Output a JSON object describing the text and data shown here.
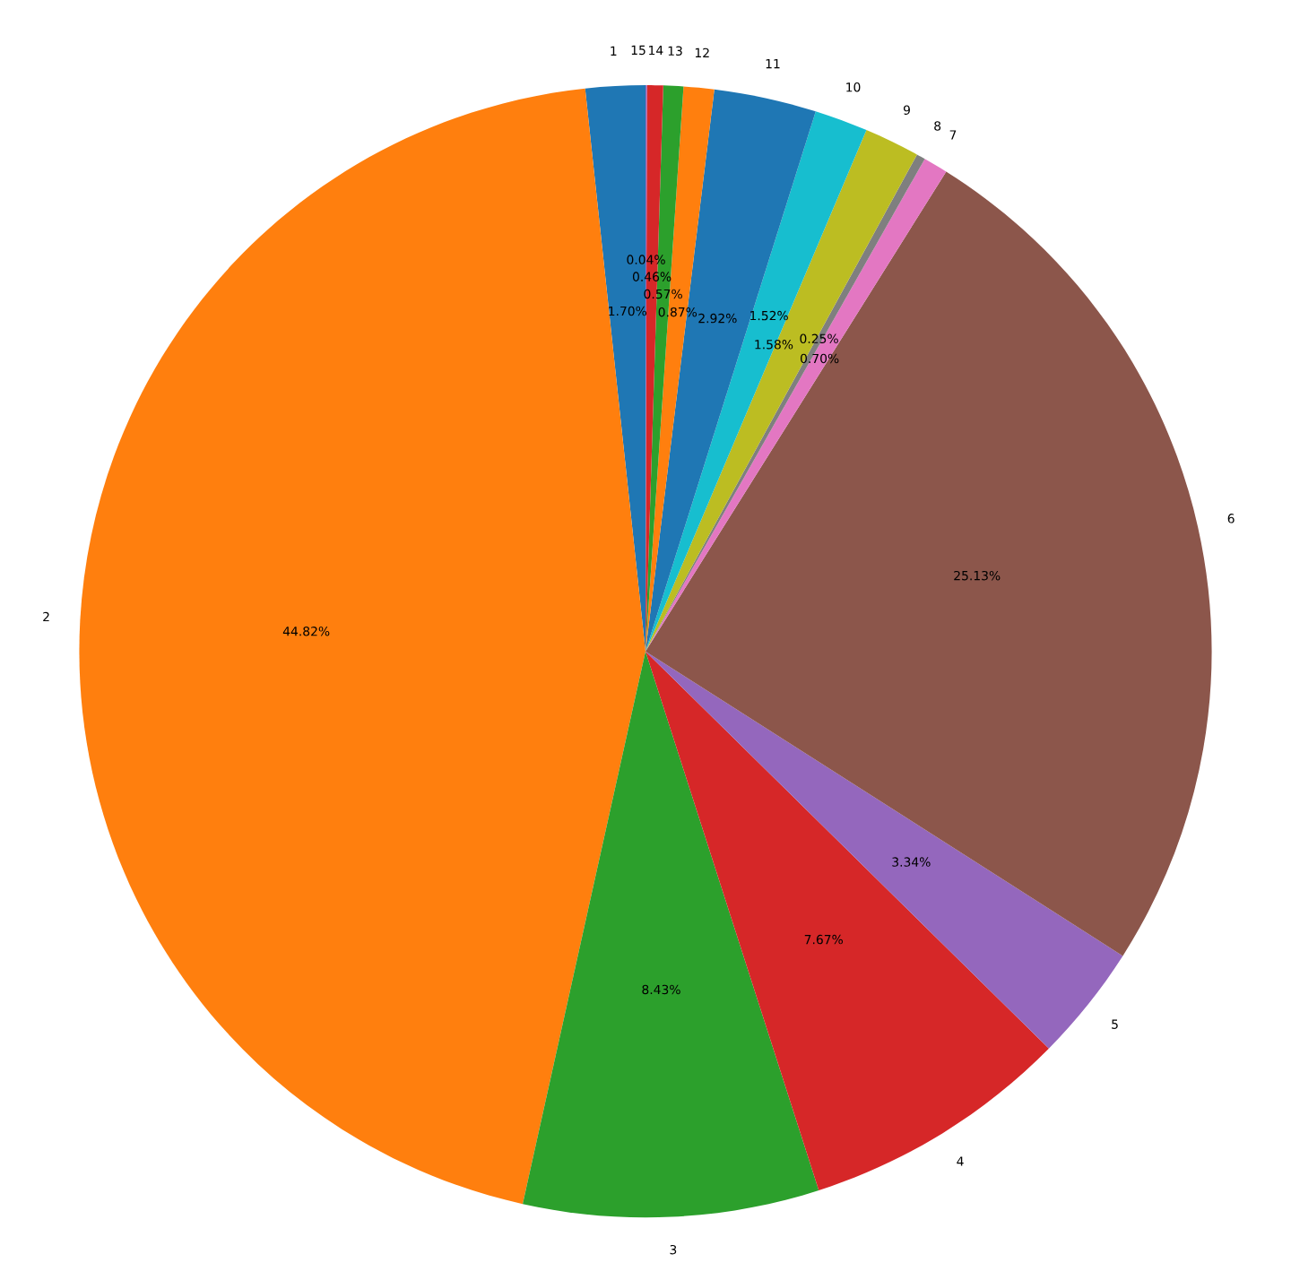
{
  "chart_data": {
    "type": "pie",
    "categories": [
      "1",
      "2",
      "3",
      "4",
      "5",
      "6",
      "7",
      "8",
      "9",
      "10",
      "11",
      "12",
      "13",
      "14",
      "15"
    ],
    "values": [
      1.7,
      44.82,
      8.43,
      7.67,
      3.34,
      25.13,
      0.7,
      0.25,
      1.58,
      1.52,
      2.92,
      0.87,
      0.57,
      0.46,
      0.04
    ],
    "colors": [
      "#1f77b4",
      "#ff7f0e",
      "#2ca02c",
      "#d62728",
      "#9467bd",
      "#8c564b",
      "#e377c2",
      "#7f7f7f",
      "#bcbd22",
      "#17becf",
      "#1f77b4",
      "#ff7f0e",
      "#2ca02c",
      "#d62728",
      "#9467bd"
    ],
    "value_labels": [
      "1.70%",
      "44.82%",
      "8.43%",
      "7.67%",
      "3.34%",
      "25.13%",
      "0.70%",
      "0.25%",
      "1.58%",
      "1.52%",
      "2.92%",
      "0.87%",
      "0.57%",
      "0.46%",
      "0.04%"
    ]
  }
}
